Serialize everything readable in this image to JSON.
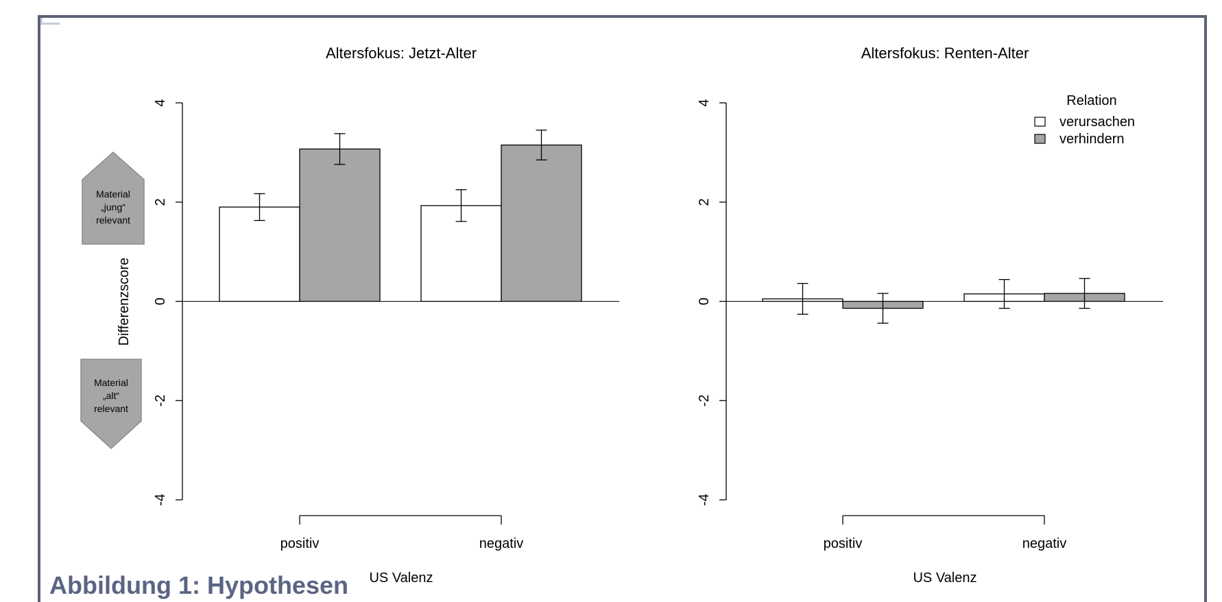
{
  "figure": {
    "caption": "Abbildung 1: Hypothesen",
    "ylabel": "Differenzscore",
    "annotations": {
      "jung": [
        "Material",
        "„jung“",
        "relevant"
      ],
      "alt": [
        "Material",
        "„alt“",
        "relevant"
      ]
    },
    "legend": {
      "title": "Relation",
      "entries": [
        {
          "label": "verursachen",
          "color": "#ffffff"
        },
        {
          "label": "verhindern",
          "color": "#a6a6a6"
        }
      ]
    }
  },
  "chart_data": [
    {
      "type": "bar",
      "title": "Altersfokus: Jetzt-Alter",
      "xlabel": "US Valenz",
      "ylabel": "Differenzscore",
      "categories": [
        "positiv",
        "negativ"
      ],
      "ylim": [
        -4,
        4
      ],
      "yticks": [
        "4",
        "2",
        "0",
        "-2",
        "-4"
      ],
      "series": [
        {
          "name": "verursachen",
          "values": [
            1.9,
            1.93
          ],
          "err": [
            0.27,
            0.32
          ]
        },
        {
          "name": "verhindern",
          "values": [
            3.07,
            3.15
          ],
          "err": [
            0.31,
            0.3
          ]
        }
      ]
    },
    {
      "type": "bar",
      "title": "Altersfokus: Renten-Alter",
      "xlabel": "US Valenz",
      "categories": [
        "positiv",
        "negativ"
      ],
      "ylim": [
        -4,
        4
      ],
      "yticks": [
        "4",
        "2",
        "0",
        "-2",
        "-4"
      ],
      "series": [
        {
          "name": "verursachen",
          "values": [
            0.05,
            0.15
          ],
          "err": [
            0.31,
            0.29
          ]
        },
        {
          "name": "verhindern",
          "values": [
            -0.14,
            0.16
          ],
          "err": [
            0.3,
            0.3
          ]
        }
      ]
    }
  ]
}
